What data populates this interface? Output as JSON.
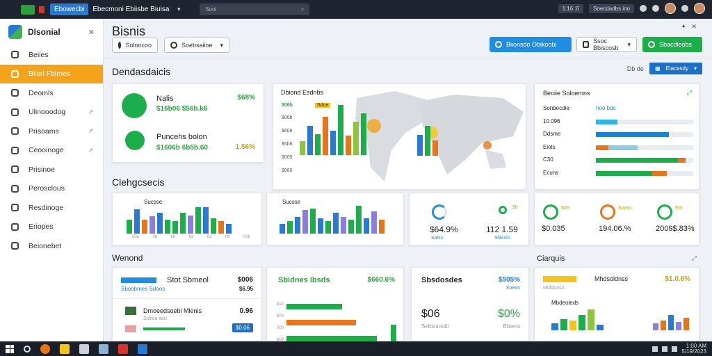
{
  "topbar": {
    "tab_label": "Ebowecbi",
    "title": "Ebecmoni Ebiisbe Biuisa",
    "search_placeholder": "Sool",
    "time": "1:16 :0",
    "status": "Soecdadbs ino"
  },
  "sidebar": {
    "app_name": "Dlsonial",
    "items": [
      {
        "label": "Beiies",
        "active": false,
        "arrow": false
      },
      {
        "label": "Biisri Fblmes",
        "active": true,
        "arrow": false
      },
      {
        "label": "Deomls",
        "active": false,
        "arrow": false
      },
      {
        "label": "Ulinooodog",
        "active": false,
        "arrow": true
      },
      {
        "label": "Prisoams",
        "active": false,
        "arrow": true
      },
      {
        "label": "Ceooinoge",
        "active": false,
        "arrow": true
      },
      {
        "label": "Prisinoe",
        "active": false,
        "arrow": false
      },
      {
        "label": "Perosclous",
        "active": false,
        "arrow": false
      },
      {
        "label": "Resdinoge",
        "active": false,
        "arrow": false
      },
      {
        "label": "Eriopes",
        "active": false,
        "arrow": false
      },
      {
        "label": "Beionebet",
        "active": false,
        "arrow": false
      }
    ]
  },
  "header": {
    "title": "Bisnis",
    "filter1": "Soloocoo",
    "filter2": "Soebsaiioe",
    "btn_blue": "Biionsdo Obikoobi",
    "btn_outline": "Ssoc Bbiscosb",
    "btn_green": "Sbacdleobs"
  },
  "section1": {
    "title": "Dendasdaicis",
    "right_small": "Db  de",
    "right_btn": "Elacesdy"
  },
  "kpi": {
    "row1_title": "Nalis",
    "row1_value": "$68%",
    "row1_sub": "$16b06 $56b.k6",
    "row2_title": "Puncehs bolon",
    "row2_sub": "$1606b 6b5b.60",
    "row2_value": "1.56%"
  },
  "map_card": {
    "title": "Dbiond Esdnbs",
    "legend1": "$06b",
    "legend2": "Sdoe",
    "y_labels": [
      "$06b",
      "$606",
      "$5b6",
      "$005",
      "$060"
    ],
    "bars": [
      {
        "v": 20,
        "c": "#8cc63f"
      },
      {
        "v": 42,
        "c": "#2a79d4"
      },
      {
        "v": 30,
        "c": "#1cae4b"
      },
      {
        "v": 55,
        "c": "#e8751a"
      },
      {
        "v": 35,
        "c": "#2a79d4"
      },
      {
        "v": 72,
        "c": "#1cae4b"
      },
      {
        "v": 28,
        "c": "#e8751a"
      },
      {
        "v": 48,
        "c": "#8cc63f"
      },
      {
        "v": 60,
        "c": "#1cae4b"
      }
    ],
    "bars2": [
      {
        "v": 40,
        "c": "#2a79d4"
      },
      {
        "v": 58,
        "c": "#1cae4b"
      },
      {
        "v": 30,
        "c": "#e8751a"
      }
    ]
  },
  "bars_card": {
    "title": "Beoiie Soloemns",
    "rows": [
      {
        "label": "Sonbecdie",
        "value": "hoo  bds",
        "bars": []
      },
      {
        "label": "10.096",
        "value": "",
        "bars": [
          {
            "w": 22,
            "c": "#2fb6e0"
          }
        ]
      },
      {
        "label": "Ddsme",
        "value": "",
        "bars": [
          {
            "w": 75,
            "c": "#1e7fd6"
          }
        ]
      },
      {
        "label": "Eiols",
        "value": "",
        "bars": [
          {
            "w": 13,
            "c": "#e8751a"
          },
          {
            "w": 30,
            "c": "#8ecbe6"
          }
        ]
      },
      {
        "label": "C30",
        "value": "",
        "bars": [
          {
            "w": 84,
            "c": "#1cae4b"
          },
          {
            "w": 8,
            "c": "#e8751a"
          }
        ]
      },
      {
        "label": "Ecuns",
        "value": "",
        "bars": [
          {
            "w": 58,
            "c": "#1cae4b"
          },
          {
            "w": 15,
            "c": "#e8751a"
          }
        ]
      }
    ]
  },
  "section2": {
    "title": "Clehgcsecis"
  },
  "chart_a": {
    "title": "Sucsse",
    "bars": [
      {
        "v": 20,
        "c": "#1cae4b"
      },
      {
        "v": 35,
        "c": "#2a79d4"
      },
      {
        "v": 20,
        "c": "#e8751a"
      },
      {
        "v": 25,
        "c": "#8a7fe0"
      },
      {
        "v": 30,
        "c": "#2a79d4"
      },
      {
        "v": 20,
        "c": "#1cae4b"
      },
      {
        "v": 18,
        "c": "#1cae4b"
      },
      {
        "v": 30,
        "c": "#1cae4b"
      },
      {
        "v": 26,
        "c": "#8a7fe0"
      },
      {
        "v": 38,
        "c": "#1cae4b"
      },
      {
        "v": 38,
        "c": "#2a79d4"
      },
      {
        "v": 22,
        "c": "#1cae4b"
      },
      {
        "v": 18,
        "c": "#e8751a"
      },
      {
        "v": 14,
        "c": "#2a79d4"
      }
    ],
    "x_labels": [
      "50a",
      "0b",
      "eb",
      "0a",
      "0a",
      "0b",
      "00b"
    ]
  },
  "chart_b": {
    "title": "Sucsse",
    "bars": [
      {
        "v": 14,
        "c": "#2a79d4"
      },
      {
        "v": 18,
        "c": "#1cae4b"
      },
      {
        "v": 24,
        "c": "#2a79d4"
      },
      {
        "v": 34,
        "c": "#8a7fe0"
      },
      {
        "v": 36,
        "c": "#1cae4b"
      },
      {
        "v": 22,
        "c": "#2a79d4"
      },
      {
        "v": 18,
        "c": "#1cae4b"
      },
      {
        "v": 30,
        "c": "#2a79d4"
      },
      {
        "v": 24,
        "c": "#8a7fe0"
      },
      {
        "v": 20,
        "c": "#1cae4b"
      },
      {
        "v": 40,
        "c": "#1cae4b"
      },
      {
        "v": 22,
        "c": "#2a79d4"
      },
      {
        "v": 32,
        "c": "#8a7fe0"
      },
      {
        "v": 20,
        "c": "#e8751a"
      }
    ]
  },
  "gauge1": {
    "left_value": "$64.9%",
    "left_sub": "Salss",
    "right_value": "112 1.59",
    "right_sub": "Slassin",
    "corner": "$0"
  },
  "gauge2": {
    "items": [
      {
        "value": "$0.035",
        "sub": "$06",
        "color": "#1cae4b"
      },
      {
        "value": "194.06.%",
        "sub": "Siarss",
        "color": "#e8751a"
      },
      {
        "value": "2009$.83%",
        "sub": "$%",
        "color": "#1cae4b"
      }
    ]
  },
  "section3": {
    "title": "Wenond",
    "right_title": "Ciarquis"
  },
  "card_c": {
    "title": "Stot Sbmeol",
    "value": "$006",
    "sub_blue": "Sboobmes Sdoos",
    "sub_value": "$6.95",
    "row_label": "Dmoeedsoebi Mlenis",
    "row_value": "0.96",
    "row_sub": "Sisisio anu",
    "btn": "$0.06"
  },
  "card_d": {
    "title": "Sbidnes Ibsds",
    "value": "$660.6%",
    "y_labels": [
      "$00",
      "$00",
      "000",
      "$00"
    ],
    "bars": [
      {
        "w": 80,
        "c": "#1cae4b"
      },
      {
        "w": 100,
        "c": "#e8751a"
      },
      {
        "w": 130,
        "c": "#1cae4b"
      }
    ]
  },
  "card_e": {
    "title": "Sbsdosdes",
    "value1": "$505%",
    "value1_sub": "Soeon",
    "big_left": "$06",
    "big_right": "$0%",
    "sub_left": "Sebsonsdil",
    "sub_right": "Bbieos"
  },
  "card_f": {
    "title": "Middooso",
    "sub_title": "Mhdsoldnss",
    "value": "$1.0.6%",
    "second_title": "Mbdeoleds",
    "bars": [
      {
        "v": 10,
        "c": "#2a79d4"
      },
      {
        "v": 16,
        "c": "#1cae4b"
      },
      {
        "v": 14,
        "c": "#f5c518"
      },
      {
        "v": 22,
        "c": "#1cae4b"
      },
      {
        "v": 30,
        "c": "#8cc63f"
      },
      {
        "v": 8,
        "c": "#2a79d4"
      }
    ],
    "bars2": [
      {
        "v": 10,
        "c": "#8a7fe0"
      },
      {
        "v": 14,
        "c": "#e8751a"
      },
      {
        "v": 22,
        "c": "#2a79d4"
      },
      {
        "v": 12,
        "c": "#8a7fe0"
      },
      {
        "v": 18,
        "c": "#e8751a"
      }
    ]
  },
  "taskbar": {
    "time": "1:00 AM",
    "date": "5/19/2023"
  }
}
